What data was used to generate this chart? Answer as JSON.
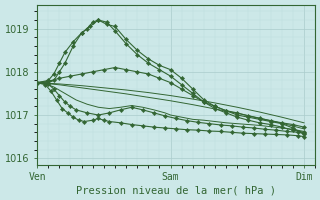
{
  "title": "Pression niveau de la mer( hPa )",
  "bg_color": "#cce8e8",
  "grid_color_major": "#aacccc",
  "grid_color_minor": "#bbdddd",
  "line_color": "#336633",
  "marker_color": "#336633",
  "axis_color": "#336633",
  "text_color": "#336633",
  "ylim": [
    1015.85,
    1019.55
  ],
  "yticks": [
    1016,
    1017,
    1018,
    1019
  ],
  "xtick_labels": [
    "Ven",
    "Sam",
    "Dim"
  ],
  "xtick_positions": [
    0,
    48,
    96
  ],
  "xlim": [
    0,
    100
  ],
  "lines": [
    {
      "pts": [
        [
          0,
          1017.75
        ],
        [
          4,
          1017.75
        ],
        [
          6,
          1017.8
        ],
        [
          8,
          1018.0
        ],
        [
          10,
          1018.2
        ],
        [
          13,
          1018.6
        ],
        [
          16,
          1018.9
        ],
        [
          19,
          1019.05
        ],
        [
          22,
          1019.2
        ],
        [
          25,
          1019.1
        ],
        [
          28,
          1019.05
        ],
        [
          32,
          1018.75
        ],
        [
          36,
          1018.5
        ],
        [
          40,
          1018.3
        ],
        [
          44,
          1018.15
        ],
        [
          48,
          1018.05
        ],
        [
          52,
          1017.85
        ],
        [
          56,
          1017.6
        ],
        [
          60,
          1017.35
        ],
        [
          64,
          1017.2
        ],
        [
          68,
          1017.1
        ],
        [
          72,
          1017.0
        ],
        [
          76,
          1016.95
        ],
        [
          80,
          1016.9
        ],
        [
          84,
          1016.85
        ],
        [
          88,
          1016.8
        ],
        [
          92,
          1016.7
        ],
        [
          96,
          1016.55
        ]
      ],
      "markers": true
    },
    {
      "pts": [
        [
          0,
          1017.75
        ],
        [
          4,
          1017.8
        ],
        [
          6,
          1017.95
        ],
        [
          8,
          1018.2
        ],
        [
          10,
          1018.45
        ],
        [
          13,
          1018.7
        ],
        [
          16,
          1018.9
        ],
        [
          18,
          1019.0
        ],
        [
          20,
          1019.15
        ],
        [
          22,
          1019.2
        ],
        [
          25,
          1019.15
        ],
        [
          28,
          1018.95
        ],
        [
          32,
          1018.65
        ],
        [
          36,
          1018.4
        ],
        [
          40,
          1018.2
        ],
        [
          44,
          1018.05
        ],
        [
          48,
          1017.9
        ],
        [
          52,
          1017.7
        ],
        [
          56,
          1017.5
        ],
        [
          60,
          1017.3
        ],
        [
          64,
          1017.15
        ],
        [
          68,
          1017.05
        ],
        [
          72,
          1016.95
        ],
        [
          76,
          1016.88
        ],
        [
          80,
          1016.82
        ],
        [
          84,
          1016.78
        ],
        [
          88,
          1016.72
        ],
        [
          92,
          1016.65
        ],
        [
          96,
          1016.6
        ]
      ],
      "markers": true
    },
    {
      "pts": [
        [
          0,
          1017.75
        ],
        [
          4,
          1017.78
        ],
        [
          8,
          1017.85
        ],
        [
          12,
          1017.9
        ],
        [
          16,
          1017.95
        ],
        [
          20,
          1018.0
        ],
        [
          24,
          1018.05
        ],
        [
          28,
          1018.1
        ],
        [
          32,
          1018.05
        ],
        [
          36,
          1018.0
        ],
        [
          40,
          1017.95
        ],
        [
          44,
          1017.85
        ],
        [
          48,
          1017.75
        ],
        [
          52,
          1017.6
        ],
        [
          56,
          1017.45
        ],
        [
          60,
          1017.3
        ],
        [
          64,
          1017.2
        ],
        [
          68,
          1017.1
        ],
        [
          72,
          1017.05
        ],
        [
          76,
          1016.98
        ],
        [
          80,
          1016.92
        ],
        [
          84,
          1016.87
        ],
        [
          88,
          1016.82
        ],
        [
          92,
          1016.78
        ],
        [
          96,
          1016.72
        ]
      ],
      "markers": true
    },
    {
      "pts": [
        [
          0,
          1017.75
        ],
        [
          8,
          1017.72
        ],
        [
          16,
          1017.68
        ],
        [
          24,
          1017.63
        ],
        [
          32,
          1017.58
        ],
        [
          40,
          1017.52
        ],
        [
          48,
          1017.45
        ],
        [
          56,
          1017.37
        ],
        [
          64,
          1017.28
        ],
        [
          72,
          1017.18
        ],
        [
          80,
          1017.07
        ],
        [
          88,
          1016.95
        ],
        [
          96,
          1016.82
        ]
      ],
      "markers": false
    },
    {
      "pts": [
        [
          0,
          1017.75
        ],
        [
          8,
          1017.7
        ],
        [
          16,
          1017.63
        ],
        [
          24,
          1017.56
        ],
        [
          32,
          1017.49
        ],
        [
          40,
          1017.41
        ],
        [
          48,
          1017.33
        ],
        [
          56,
          1017.24
        ],
        [
          64,
          1017.14
        ],
        [
          72,
          1017.04
        ],
        [
          80,
          1016.93
        ],
        [
          88,
          1016.81
        ],
        [
          96,
          1016.68
        ]
      ],
      "markers": false
    },
    {
      "pts": [
        [
          0,
          1017.75
        ],
        [
          3,
          1017.72
        ],
        [
          6,
          1017.65
        ],
        [
          10,
          1017.5
        ],
        [
          14,
          1017.35
        ],
        [
          18,
          1017.25
        ],
        [
          22,
          1017.18
        ],
        [
          26,
          1017.15
        ],
        [
          30,
          1017.18
        ],
        [
          34,
          1017.22
        ],
        [
          38,
          1017.18
        ],
        [
          42,
          1017.12
        ],
        [
          46,
          1017.05
        ],
        [
          48,
          1017.0
        ],
        [
          52,
          1016.95
        ],
        [
          56,
          1016.9
        ],
        [
          60,
          1016.88
        ],
        [
          64,
          1016.85
        ],
        [
          68,
          1016.82
        ],
        [
          72,
          1016.8
        ],
        [
          76,
          1016.78
        ],
        [
          80,
          1016.76
        ],
        [
          84,
          1016.73
        ],
        [
          88,
          1016.7
        ],
        [
          92,
          1016.67
        ],
        [
          96,
          1016.62
        ]
      ],
      "markers": false
    },
    {
      "pts": [
        [
          0,
          1017.75
        ],
        [
          4,
          1017.72
        ],
        [
          6,
          1017.6
        ],
        [
          8,
          1017.45
        ],
        [
          10,
          1017.3
        ],
        [
          12,
          1017.2
        ],
        [
          14,
          1017.12
        ],
        [
          18,
          1017.05
        ],
        [
          22,
          1017.0
        ],
        [
          26,
          1017.05
        ],
        [
          30,
          1017.12
        ],
        [
          34,
          1017.18
        ],
        [
          38,
          1017.12
        ],
        [
          42,
          1017.05
        ],
        [
          46,
          1016.98
        ],
        [
          50,
          1016.92
        ],
        [
          54,
          1016.87
        ],
        [
          58,
          1016.83
        ],
        [
          62,
          1016.8
        ],
        [
          66,
          1016.77
        ],
        [
          70,
          1016.75
        ],
        [
          74,
          1016.72
        ],
        [
          78,
          1016.7
        ],
        [
          82,
          1016.67
        ],
        [
          86,
          1016.65
        ],
        [
          90,
          1016.62
        ],
        [
          94,
          1016.6
        ],
        [
          96,
          1016.58
        ]
      ],
      "markers": true
    },
    {
      "pts": [
        [
          0,
          1017.75
        ],
        [
          3,
          1017.7
        ],
        [
          5,
          1017.55
        ],
        [
          7,
          1017.35
        ],
        [
          9,
          1017.15
        ],
        [
          11,
          1017.05
        ],
        [
          13,
          1016.95
        ],
        [
          15,
          1016.88
        ],
        [
          17,
          1016.85
        ],
        [
          20,
          1016.88
        ],
        [
          22,
          1016.92
        ],
        [
          24,
          1016.88
        ],
        [
          26,
          1016.85
        ],
        [
          30,
          1016.82
        ],
        [
          34,
          1016.78
        ],
        [
          38,
          1016.75
        ],
        [
          42,
          1016.72
        ],
        [
          46,
          1016.7
        ],
        [
          50,
          1016.68
        ],
        [
          54,
          1016.66
        ],
        [
          58,
          1016.65
        ],
        [
          62,
          1016.63
        ],
        [
          66,
          1016.62
        ],
        [
          70,
          1016.6
        ],
        [
          74,
          1016.58
        ],
        [
          78,
          1016.57
        ],
        [
          82,
          1016.56
        ],
        [
          86,
          1016.55
        ],
        [
          90,
          1016.54
        ],
        [
          94,
          1016.52
        ],
        [
          96,
          1016.5
        ]
      ],
      "markers": true
    }
  ]
}
